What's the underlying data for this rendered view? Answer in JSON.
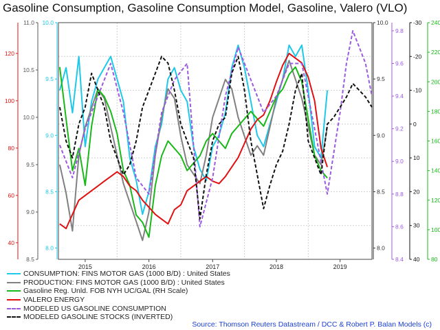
{
  "chart_data": {
    "type": "line",
    "title": "Gasoline Consumption, Gasoline Consumption Model, Gasoline, Valero (VLO)",
    "source": "Source: Thomson Reuters Datastream / DCC & Robert P. Balan Models (c)",
    "x_ticks": [
      "2015",
      "2016",
      "2017",
      "2018",
      "2019"
    ],
    "x_range": [
      2014.58,
      2019.5
    ],
    "grid": true,
    "legend_position": "bottom-left",
    "axes": {
      "valero": {
        "side": "left",
        "color": "#e01010",
        "ticks": [
          40,
          60,
          80,
          100,
          120
        ],
        "range": [
          33,
          133
        ]
      },
      "production": {
        "side": "left",
        "color": "#555555",
        "ticks": [
          8.5,
          9.0,
          9.5,
          10.0,
          10.5,
          11.0
        ],
        "range": [
          8.5,
          11.0
        ]
      },
      "consumption": {
        "side": "left",
        "color": "#1ec8e8",
        "ticks": [
          8.0,
          8.5,
          9.0,
          9.5,
          10.0
        ],
        "range": [
          7.9,
          10.0
        ]
      },
      "model_consumption": {
        "side": "right",
        "color": "#333333",
        "ticks": [
          8.0,
          8.5,
          9.0,
          9.5,
          10.0
        ],
        "range": [
          7.9,
          10.0
        ]
      },
      "model_consumption_purple": {
        "side": "right",
        "color": "#9b59e0",
        "ticks": [
          8.4,
          8.6,
          8.8,
          9.0,
          9.2,
          9.4,
          9.6,
          9.8
        ],
        "range": [
          8.4,
          9.85
        ]
      },
      "stocks_inverted": {
        "side": "right",
        "color": "#111111",
        "ticks": [
          -30,
          -20,
          -10,
          0,
          10,
          20,
          30,
          40
        ],
        "range": [
          -30,
          40
        ],
        "inverted": true
      },
      "gasoline_price": {
        "side": "right",
        "color": "#18b818",
        "ticks": [
          80,
          100,
          120,
          140,
          160,
          180,
          200,
          220,
          240
        ],
        "range": [
          80,
          240
        ]
      }
    },
    "series": [
      {
        "name": "CONSUMPTION: FINS MOTOR GAS (1000 B/D) : United States",
        "color": "#1ec8e8",
        "style": "solid",
        "axis": "consumption",
        "x": [
          2014.6,
          2014.7,
          2014.8,
          2014.9,
          2015.0,
          2015.1,
          2015.2,
          2015.3,
          2015.4,
          2015.5,
          2015.6,
          2015.7,
          2015.8,
          2015.9,
          2016.0,
          2016.1,
          2016.2,
          2016.3,
          2016.4,
          2016.5,
          2016.6,
          2016.7,
          2016.8,
          2016.9,
          2017.0,
          2017.1,
          2017.2,
          2017.3,
          2017.4,
          2017.5,
          2017.6,
          2017.7,
          2017.8,
          2017.9,
          2018.0,
          2018.1,
          2018.2,
          2018.3,
          2018.4,
          2018.5,
          2018.6,
          2018.7,
          2018.8
        ],
        "values": [
          9.4,
          9.6,
          9.2,
          9.7,
          8.9,
          9.3,
          9.5,
          9.6,
          9.7,
          9.5,
          9.3,
          8.8,
          8.6,
          8.3,
          8.5,
          8.9,
          9.1,
          9.5,
          9.6,
          9.4,
          9.3,
          8.9,
          8.7,
          8.6,
          8.9,
          9.0,
          9.2,
          9.6,
          9.8,
          9.6,
          9.3,
          9.0,
          8.9,
          9.1,
          9.3,
          9.5,
          9.8,
          9.7,
          9.8,
          9.4,
          8.9,
          8.8,
          9.4
        ]
      },
      {
        "name": "PRODUCTION: FINS MOTOR GAS (1000 B/D) : United States",
        "color": "#808080",
        "style": "solid",
        "axis": "production",
        "x": [
          2014.6,
          2014.7,
          2014.8,
          2014.9,
          2015.0,
          2015.1,
          2015.2,
          2015.3,
          2015.4,
          2015.5,
          2015.6,
          2015.7,
          2015.8,
          2015.9,
          2016.0,
          2016.1,
          2016.2,
          2016.3,
          2016.4,
          2016.5,
          2016.6,
          2016.7,
          2016.8,
          2016.9,
          2017.0,
          2017.1,
          2017.2,
          2017.3,
          2017.4,
          2017.5,
          2017.6,
          2017.7,
          2017.8,
          2017.9,
          2018.0,
          2018.1,
          2018.2,
          2018.3,
          2018.4,
          2018.5,
          2018.6,
          2018.7,
          2018.8
        ],
        "values": [
          9.5,
          9.2,
          8.8,
          9.6,
          9.9,
          10.1,
          10.3,
          10.2,
          9.9,
          9.6,
          9.3,
          9.1,
          8.9,
          8.7,
          9.0,
          9.6,
          10.0,
          10.3,
          10.2,
          9.8,
          9.5,
          9.4,
          9.3,
          9.6,
          10.0,
          10.2,
          10.4,
          10.3,
          10.0,
          9.8,
          9.6,
          9.7,
          9.6,
          9.9,
          10.2,
          10.4,
          10.6,
          10.4,
          10.2,
          9.9,
          9.6,
          9.5,
          9.9
        ]
      },
      {
        "name": "Gasoline Reg. Unld. FOB NYH UC/GAL (RH Scale)",
        "color": "#18b818",
        "style": "solid",
        "axis": "gasoline_price",
        "x": [
          2014.6,
          2014.7,
          2014.8,
          2014.9,
          2015.0,
          2015.1,
          2015.2,
          2015.3,
          2015.4,
          2015.5,
          2015.6,
          2015.7,
          2015.8,
          2015.9,
          2016.0,
          2016.1,
          2016.2,
          2016.3,
          2016.4,
          2016.5,
          2016.6,
          2016.7,
          2016.8,
          2016.9,
          2017.0,
          2017.1,
          2017.2,
          2017.3,
          2017.4,
          2017.5,
          2017.6,
          2017.7,
          2017.8,
          2017.9,
          2018.0,
          2018.1,
          2018.2,
          2018.3,
          2018.4,
          2018.5,
          2018.6,
          2018.7,
          2018.8
        ],
        "values": [
          210,
          175,
          140,
          155,
          130,
          170,
          195,
          190,
          180,
          165,
          140,
          130,
          110,
          105,
          95,
          130,
          150,
          160,
          155,
          150,
          140,
          145,
          150,
          160,
          165,
          160,
          155,
          165,
          170,
          175,
          180,
          175,
          170,
          180,
          190,
          195,
          205,
          210,
          200,
          175,
          150,
          140,
          135
        ]
      },
      {
        "name": "VALERO ENERGY",
        "color": "#e01010",
        "style": "solid",
        "axis": "valero",
        "x": [
          2014.6,
          2014.7,
          2014.8,
          2014.9,
          2015.0,
          2015.1,
          2015.2,
          2015.3,
          2015.4,
          2015.5,
          2015.6,
          2015.7,
          2015.8,
          2015.9,
          2016.0,
          2016.1,
          2016.2,
          2016.3,
          2016.4,
          2016.5,
          2016.6,
          2016.7,
          2016.8,
          2016.9,
          2017.0,
          2017.1,
          2017.2,
          2017.3,
          2017.4,
          2017.5,
          2017.6,
          2017.7,
          2017.8,
          2017.9,
          2018.0,
          2018.1,
          2018.2,
          2018.3,
          2018.4,
          2018.5,
          2018.6,
          2018.7,
          2018.8
        ],
        "values": [
          48,
          46,
          52,
          58,
          60,
          62,
          64,
          66,
          68,
          70,
          68,
          64,
          62,
          58,
          55,
          52,
          50,
          48,
          54,
          56,
          62,
          64,
          66,
          68,
          66,
          65,
          68,
          72,
          76,
          82,
          88,
          92,
          94,
          100,
          108,
          115,
          120,
          118,
          116,
          110,
          100,
          80,
          72
        ]
      },
      {
        "name": "MODELED US GASOLINE CONSUMPTION",
        "color": "#9b59e0",
        "style": "dashed",
        "axis": "model_consumption_purple",
        "x": [
          2014.6,
          2014.8,
          2015.0,
          2015.2,
          2015.4,
          2015.6,
          2015.8,
          2016.0,
          2016.2,
          2016.4,
          2016.6,
          2016.8,
          2017.0,
          2017.2,
          2017.4,
          2017.6,
          2017.8,
          2018.0,
          2018.2,
          2018.4,
          2018.6,
          2018.8,
          2019.0,
          2019.1,
          2019.2,
          2019.3,
          2019.4,
          2019.5
        ],
        "values": [
          9.1,
          8.9,
          9.2,
          9.4,
          9.6,
          9.3,
          8.9,
          8.8,
          9.3,
          9.5,
          9.6,
          8.6,
          8.9,
          9.4,
          9.7,
          9.5,
          9.3,
          9.4,
          9.6,
          9.6,
          9.2,
          8.8,
          9.3,
          9.6,
          9.8,
          9.7,
          9.6,
          9.4
        ]
      },
      {
        "name": "MODELED GASOLINE STOCKS (INVERTED)",
        "color": "#111111",
        "style": "dashed",
        "axis": "stocks_inverted",
        "x": [
          2014.6,
          2014.7,
          2014.8,
          2014.9,
          2015.0,
          2015.1,
          2015.2,
          2015.3,
          2015.4,
          2015.5,
          2015.6,
          2015.7,
          2015.8,
          2015.9,
          2016.0,
          2016.1,
          2016.2,
          2016.3,
          2016.4,
          2016.5,
          2016.6,
          2016.7,
          2016.8,
          2016.9,
          2017.0,
          2017.1,
          2017.2,
          2017.3,
          2017.4,
          2017.5,
          2017.6,
          2017.7,
          2017.8,
          2017.9,
          2018.0,
          2018.1,
          2018.2,
          2018.3,
          2018.4,
          2018.5,
          2018.6,
          2018.7,
          2018.8,
          2018.9,
          2019.0,
          2019.1,
          2019.2,
          2019.3,
          2019.4,
          2019.5
        ],
        "values": [
          -5,
          5,
          10,
          0,
          -5,
          -15,
          -10,
          -5,
          5,
          10,
          15,
          12,
          5,
          -5,
          -10,
          -15,
          -20,
          -18,
          -10,
          0,
          5,
          10,
          28,
          15,
          5,
          0,
          -2,
          -15,
          -20,
          -10,
          5,
          15,
          25,
          18,
          12,
          8,
          0,
          -10,
          -15,
          5,
          10,
          15,
          0,
          -2,
          -5,
          -8,
          -12,
          -10,
          -8,
          -5
        ]
      }
    ]
  }
}
